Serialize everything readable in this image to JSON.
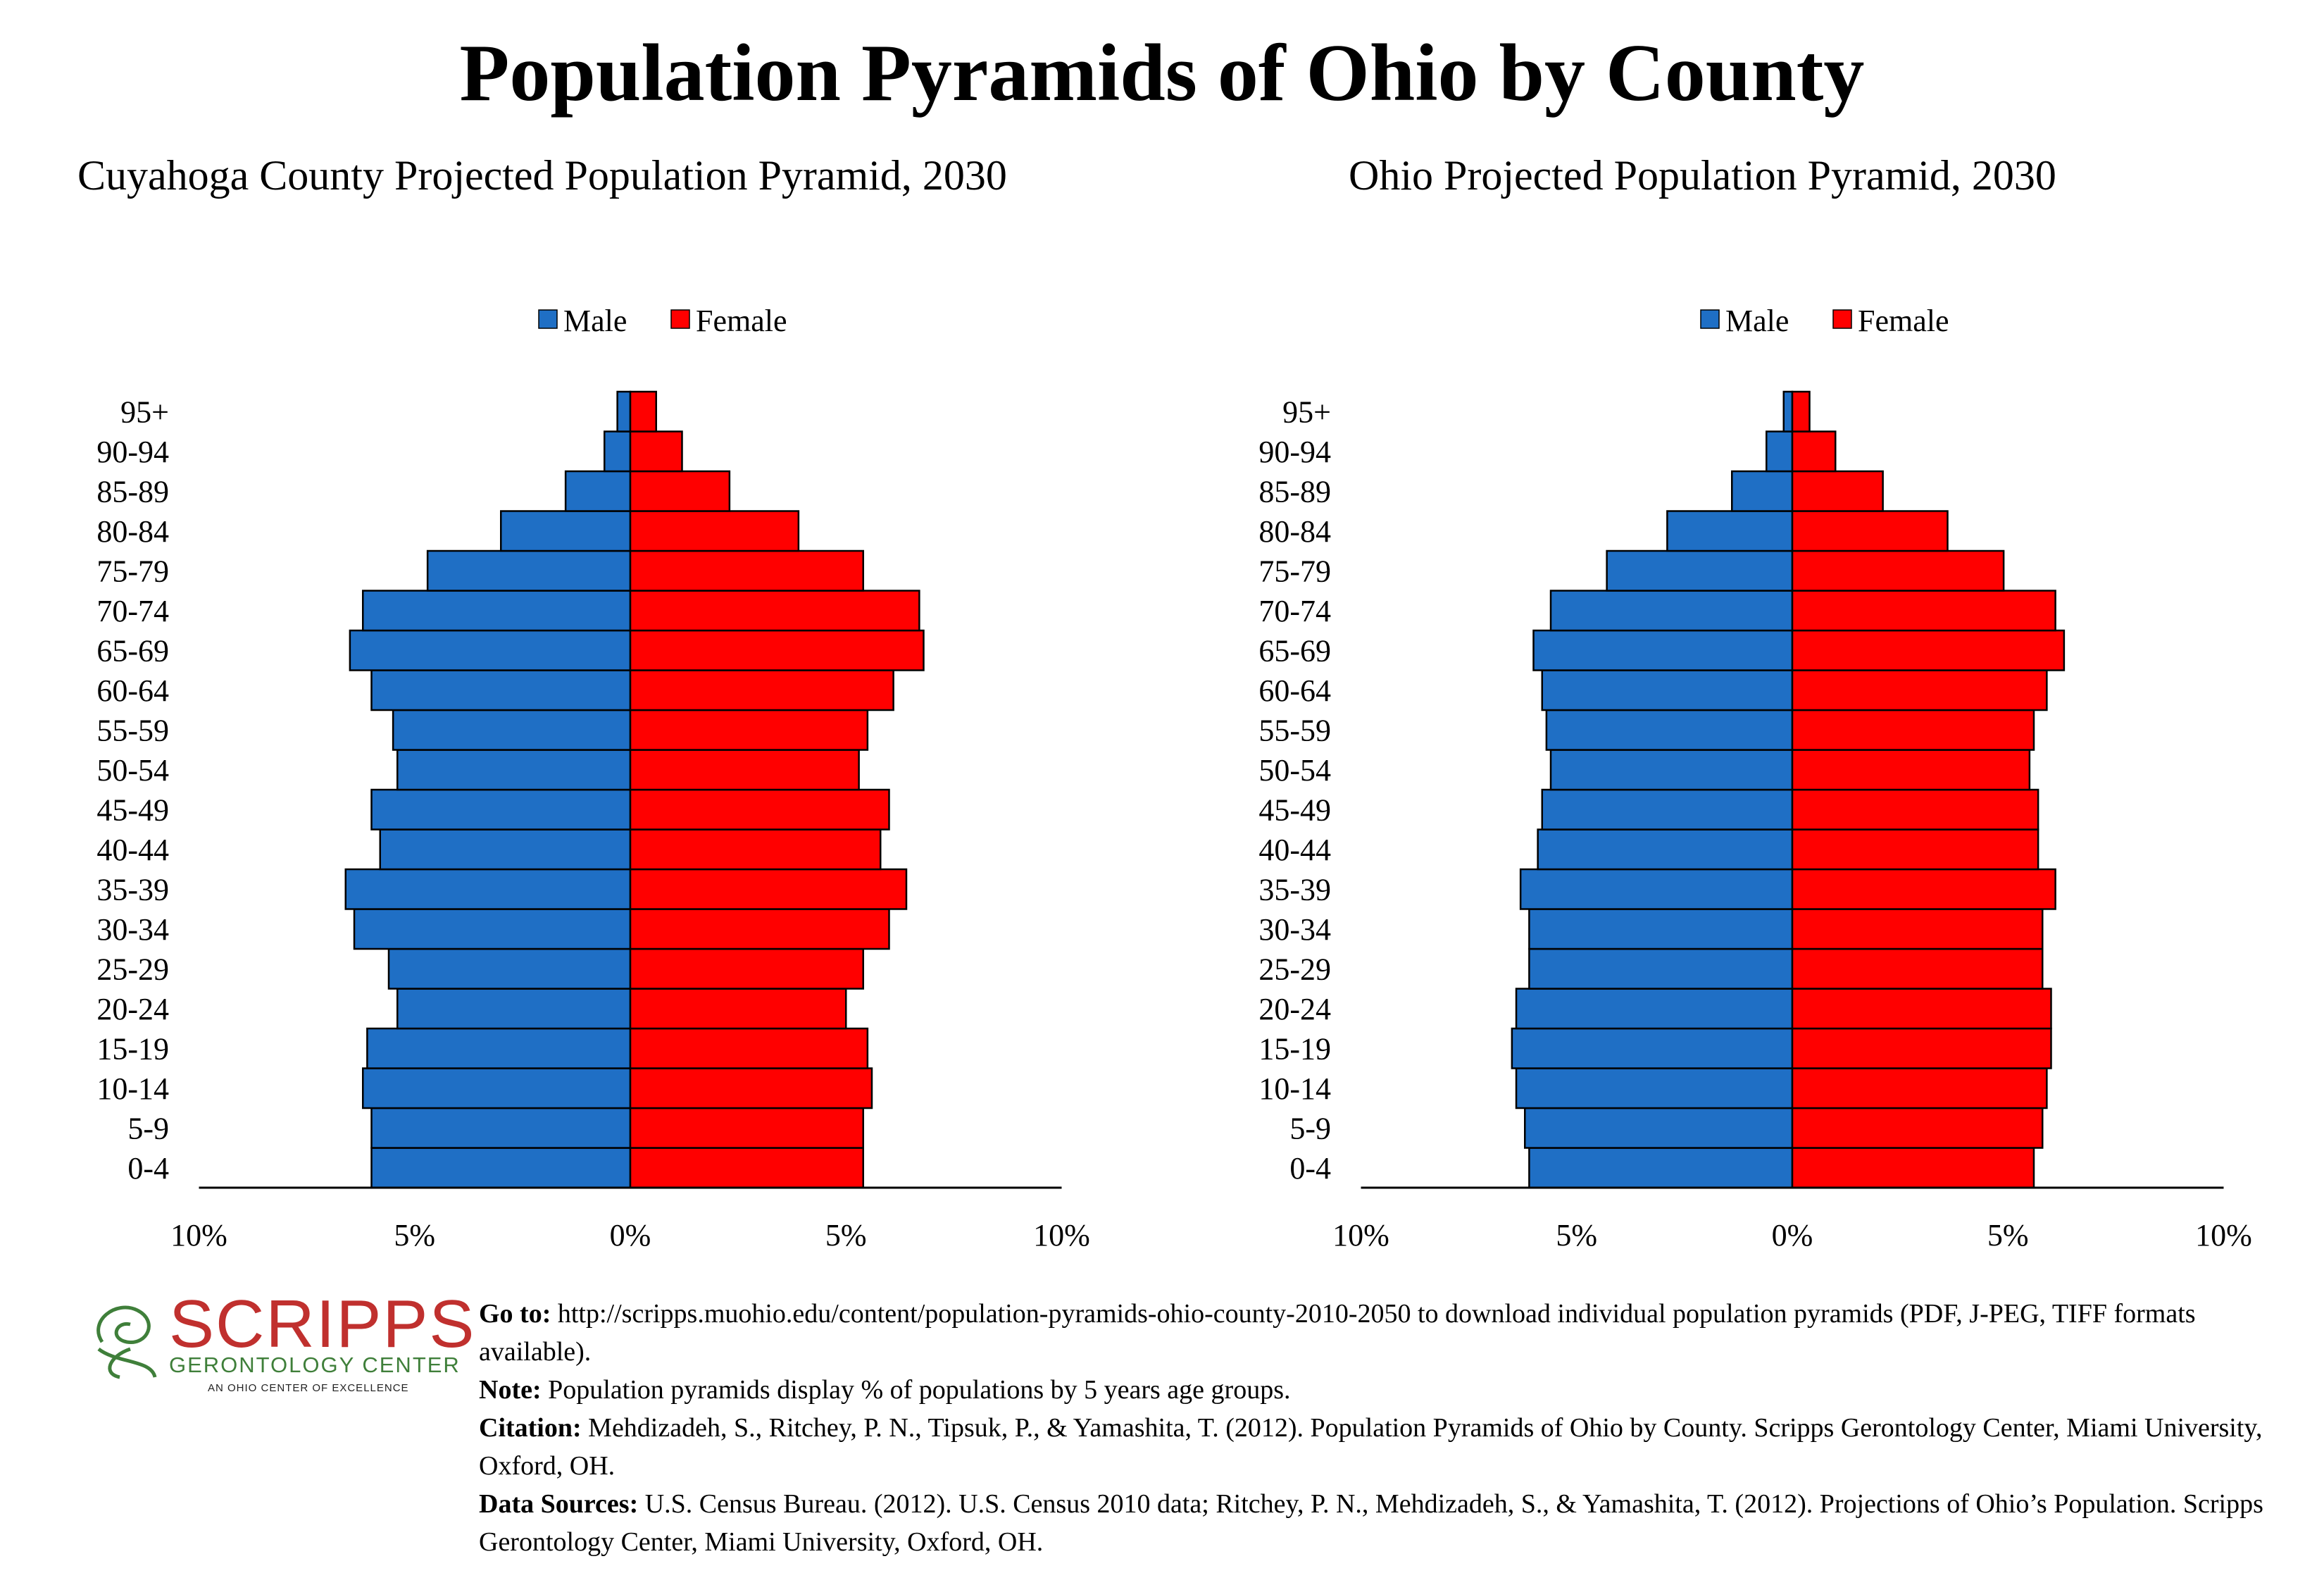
{
  "title": "Population Pyramids of Ohio by County",
  "colors": {
    "male": "#1f6fc5",
    "female": "#ff0000",
    "logo_red": "#c0302e",
    "logo_green": "#3f7f3a"
  },
  "chart_data": [
    {
      "type": "bar",
      "title": "Cuyahoga County Projected Population Pyramid, 2030",
      "orientation": "horizontal-pyramid",
      "legend_position": "top",
      "categories": [
        "0-4",
        "5-9",
        "10-14",
        "15-19",
        "20-24",
        "25-29",
        "30-34",
        "35-39",
        "40-44",
        "45-49",
        "50-54",
        "55-59",
        "60-64",
        "65-69",
        "70-74",
        "75-79",
        "80-84",
        "85-89",
        "90-94",
        "95+"
      ],
      "series": [
        {
          "name": "Male",
          "values": [
            6.0,
            6.0,
            6.2,
            6.1,
            5.4,
            5.6,
            6.4,
            6.6,
            5.8,
            6.0,
            5.4,
            5.5,
            6.0,
            6.5,
            6.2,
            4.7,
            3.0,
            1.5,
            0.6,
            0.3
          ]
        },
        {
          "name": "Female",
          "values": [
            5.4,
            5.4,
            5.6,
            5.5,
            5.0,
            5.4,
            6.0,
            6.4,
            5.8,
            6.0,
            5.3,
            5.5,
            6.1,
            6.8,
            6.7,
            5.4,
            3.9,
            2.3,
            1.2,
            0.6
          ]
        }
      ],
      "xlim": [
        -10,
        10
      ],
      "xticks": [
        "10%",
        "5%",
        "0%",
        "5%",
        "10%"
      ],
      "grid": false
    },
    {
      "type": "bar",
      "title": "Ohio Projected Population Pyramid, 2030",
      "orientation": "horizontal-pyramid",
      "legend_position": "top",
      "categories": [
        "0-4",
        "5-9",
        "10-14",
        "15-19",
        "20-24",
        "25-29",
        "30-34",
        "35-39",
        "40-44",
        "45-49",
        "50-54",
        "55-59",
        "60-64",
        "65-69",
        "70-74",
        "75-79",
        "80-84",
        "85-89",
        "90-94",
        "95+"
      ],
      "series": [
        {
          "name": "Male",
          "values": [
            6.1,
            6.2,
            6.4,
            6.5,
            6.4,
            6.1,
            6.1,
            6.3,
            5.9,
            5.8,
            5.6,
            5.7,
            5.8,
            6.0,
            5.6,
            4.3,
            2.9,
            1.4,
            0.6,
            0.2
          ]
        },
        {
          "name": "Female",
          "values": [
            5.6,
            5.8,
            5.9,
            6.0,
            6.0,
            5.8,
            5.8,
            6.1,
            5.7,
            5.7,
            5.5,
            5.6,
            5.9,
            6.3,
            6.1,
            4.9,
            3.6,
            2.1,
            1.0,
            0.4
          ]
        }
      ],
      "xlim": [
        -10,
        10
      ],
      "xticks": [
        "10%",
        "5%",
        "0%",
        "5%",
        "10%"
      ],
      "grid": false
    }
  ],
  "logo": {
    "name": "SCRIPPS",
    "subtitle": "GERONTOLOGY CENTER",
    "tagline": "AN OHIO CENTER OF EXCELLENCE"
  },
  "footer": {
    "goto_label": "Go to:",
    "goto_text": "http://scripps.muohio.edu/content/population-pyramids-ohio-county-2010-2050 to download individual population pyramids (PDF, J-PEG, TIFF formats available).",
    "note_label": "Note:",
    "note_text": "Population pyramids display % of populations by 5 years age groups.",
    "citation_label": "Citation:",
    "citation_text": "Mehdizadeh, S., Ritchey, P. N., Tipsuk, P., & Yamashita, T. (2012). Population Pyramids of Ohio by County. Scripps Gerontology Center, Miami University, Oxford, OH.",
    "sources_label": "Data Sources:",
    "sources_text": "U.S. Census Bureau. (2012). U.S. Census 2010 data; Ritchey, P. N., Mehdizadeh, S., & Yamashita, T. (2012). Projections of Ohio’s Population. Scripps Gerontology Center, Miami University, Oxford, OH."
  }
}
